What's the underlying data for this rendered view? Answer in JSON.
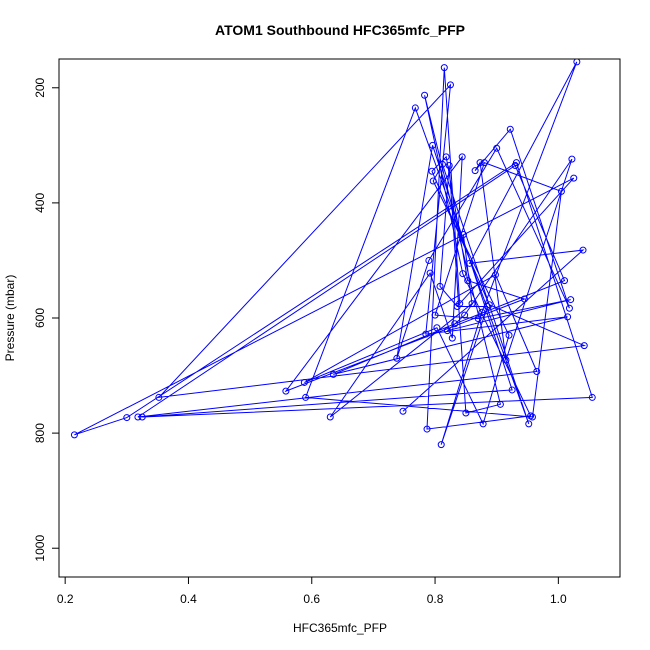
{
  "chart_data": {
    "type": "scatter",
    "title": "ATOM1 Southbound HFC365mfc_PFP",
    "xlabel": "HFC365mfc_PFP",
    "ylabel": "Pressure (mbar)",
    "xlim": [
      0.19,
      1.1
    ],
    "ylim": [
      1050,
      150
    ],
    "x_ticks": [
      0.2,
      0.4,
      0.6,
      0.8,
      1.0
    ],
    "x_tick_labels": [
      "0.2",
      "0.4",
      "0.6",
      "0.8",
      "1.0"
    ],
    "y_ticks": [
      200,
      400,
      600,
      800,
      1000
    ],
    "y_tick_labels": [
      "200",
      "400",
      "600",
      "800",
      "1000"
    ],
    "grid": false,
    "series": [
      {
        "color": "#0000ff",
        "x": [
          0.215,
          0.3,
          0.318,
          0.325,
          0.352,
          0.558,
          0.588,
          0.59,
          0.63,
          0.635,
          0.738,
          0.748,
          0.768,
          0.783,
          0.785,
          0.787,
          0.79,
          0.792,
          0.795,
          0.796,
          0.797,
          0.8,
          0.803,
          0.808,
          0.81,
          0.812,
          0.815,
          0.818,
          0.82,
          0.823,
          0.825,
          0.828,
          0.832,
          0.836,
          0.84,
          0.844,
          0.845,
          0.846,
          0.848,
          0.85,
          0.853,
          0.856,
          0.86,
          0.865,
          0.87,
          0.873,
          0.876,
          0.878,
          0.88,
          0.885,
          0.888,
          0.898,
          0.9,
          0.906,
          0.915,
          0.92,
          0.922,
          0.925,
          0.93,
          0.932,
          0.945,
          0.952,
          0.955,
          0.958,
          0.965,
          1.005,
          1.01,
          1.015,
          1.018,
          1.02,
          1.022,
          1.025,
          1.03,
          1.04,
          1.042,
          1.055
        ],
        "y": [
          803,
          773,
          772,
          772,
          738,
          727,
          712,
          738,
          772,
          698,
          670,
          762,
          235,
          213,
          628,
          793,
          500,
          522,
          345,
          300,
          362,
          595,
          617,
          545,
          820,
          333,
          165,
          320,
          622,
          335,
          195,
          635,
          610,
          580,
          575,
          320,
          523,
          455,
          595,
          765,
          535,
          505,
          575,
          344,
          601,
          330,
          590,
          784,
          330,
          580,
          577,
          525,
          305,
          750,
          673,
          630,
          272,
          725,
          335,
          330,
          567,
          784,
          770,
          772,
          693,
          380,
          535,
          598,
          583,
          568,
          324,
          357,
          155,
          482,
          648,
          738
        ]
      }
    ]
  }
}
